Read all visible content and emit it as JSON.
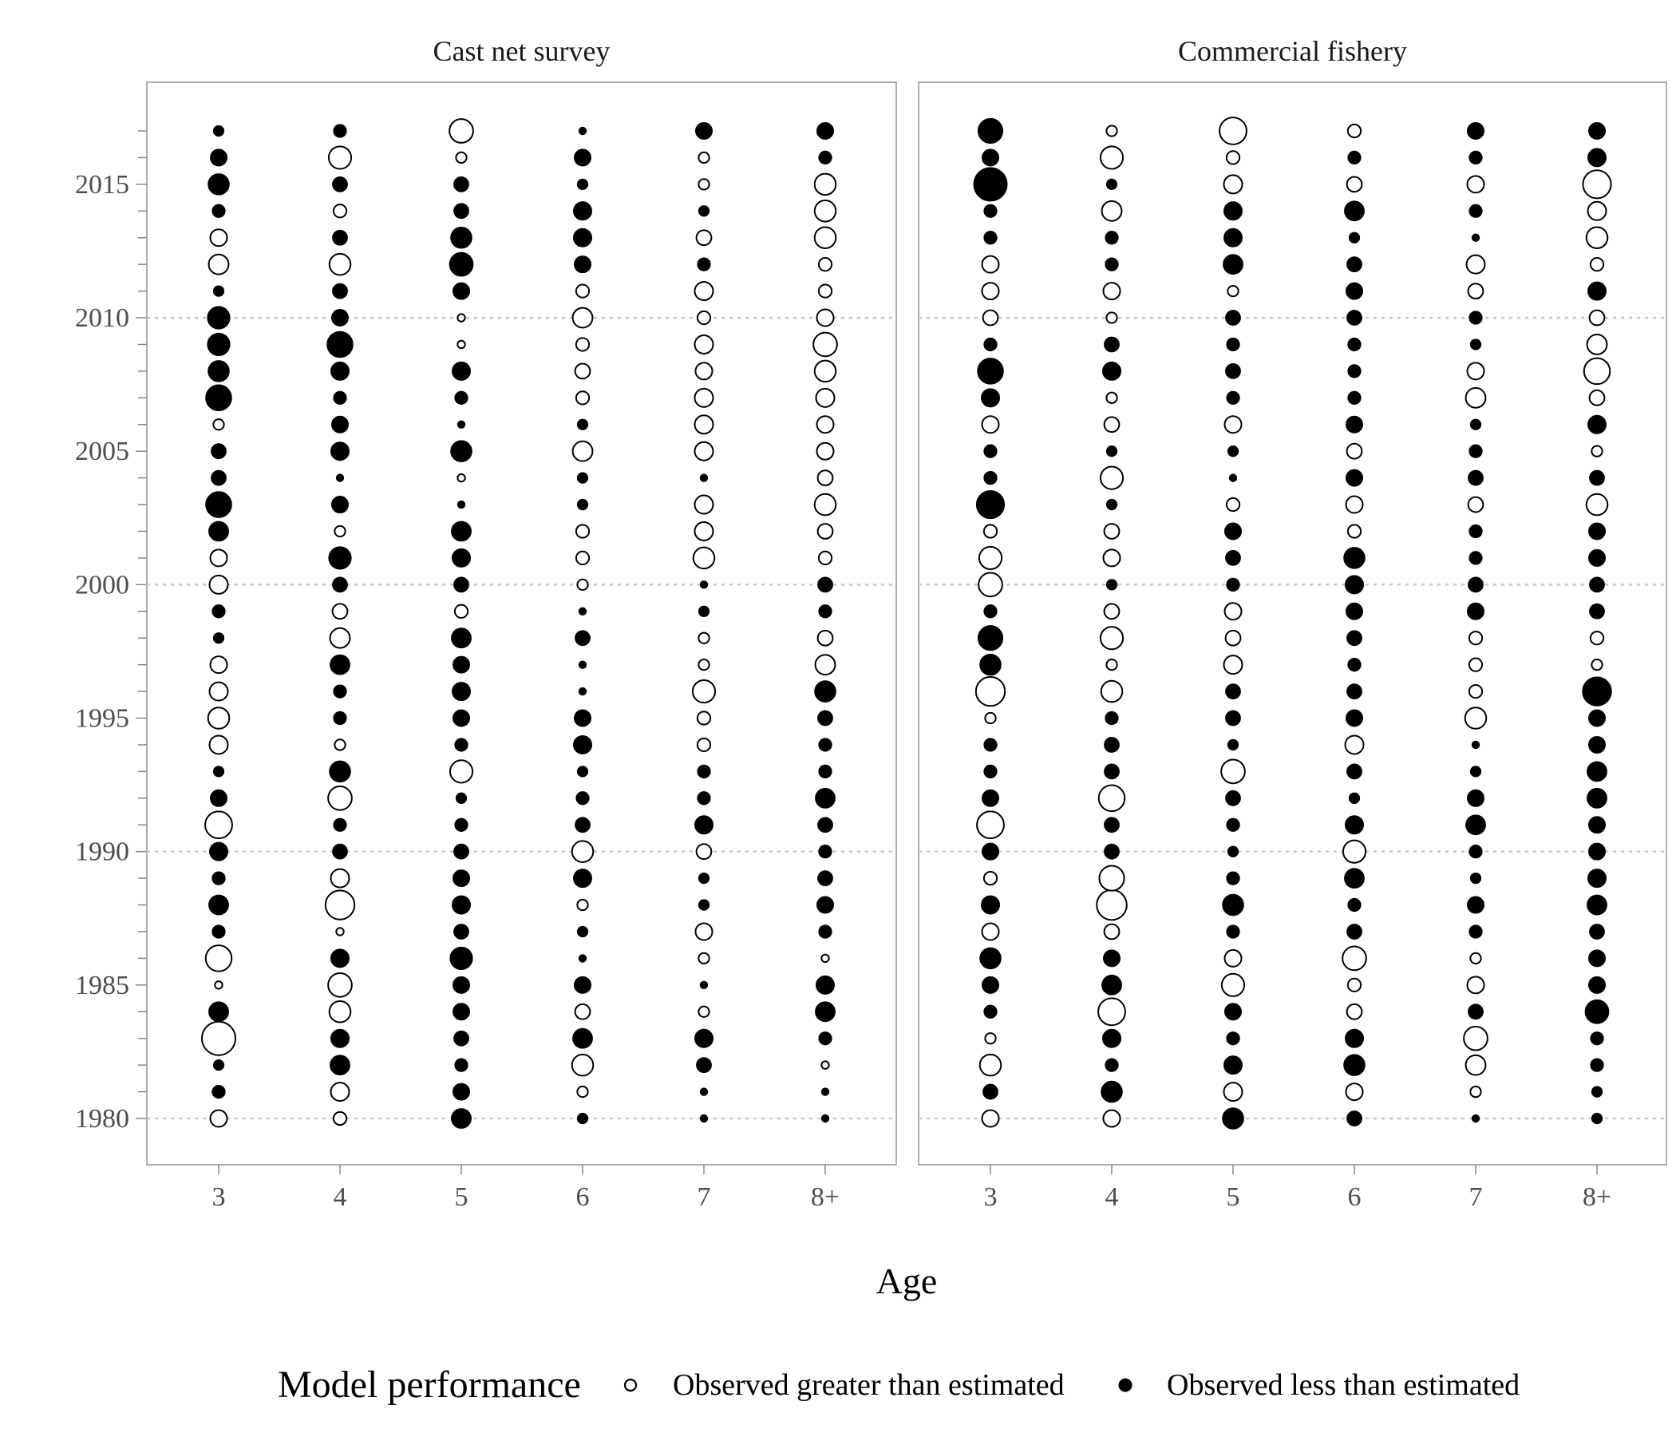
{
  "chart_data": {
    "type": "scatter",
    "subtype": "bubble-residuals",
    "xlabel": "Age",
    "ylabel": "",
    "x_categories": [
      "3",
      "4",
      "5",
      "6",
      "7",
      "8+"
    ],
    "y_ticks": [
      1980,
      1985,
      1990,
      1995,
      2000,
      2005,
      2010,
      2015
    ],
    "ylim": [
      1980,
      2017
    ],
    "grid": "dotted horizontal lines at 1980, 1990, 2000, 2010",
    "legend": {
      "title": "Model performance",
      "placement": "bottom",
      "entries": [
        {
          "label": "Observed greater than estimated",
          "symbol": "open circle"
        },
        {
          "label": "Observed less than estimated",
          "symbol": "filled circle"
        }
      ]
    },
    "encoding": "value = signed residual; positive = open circle (observed greater than estimated), negative = filled circle (observed less than estimated); circle area ~ |value|",
    "years": [
      1980,
      1981,
      1982,
      1983,
      1984,
      1985,
      1986,
      1987,
      1988,
      1989,
      1990,
      1991,
      1992,
      1993,
      1994,
      1995,
      1996,
      1997,
      1998,
      1999,
      2000,
      2001,
      2002,
      2003,
      2004,
      2005,
      2006,
      2007,
      2008,
      2009,
      2010,
      2011,
      2012,
      2013,
      2014,
      2015,
      2016,
      2017
    ],
    "panels": [
      {
        "title": "Cast net survey",
        "series": {
          "3": [
            0.5,
            -0.3,
            -0.2,
            2.0,
            -0.7,
            0.1,
            1.2,
            -0.3,
            -0.7,
            -0.3,
            -0.6,
            1.3,
            -0.5,
            -0.2,
            0.6,
            0.8,
            0.6,
            0.5,
            -0.2,
            -0.3,
            0.6,
            0.5,
            -0.7,
            -1.2,
            -0.4,
            -0.4,
            0.2,
            -1.2,
            -0.8,
            -0.9,
            -0.9,
            -0.2,
            0.7,
            0.5,
            -0.3,
            -0.8,
            -0.5,
            -0.2
          ],
          "4": [
            0.3,
            0.6,
            -0.7,
            -0.6,
            0.8,
            1.0,
            -0.6,
            0.1,
            1.5,
            0.6,
            -0.4,
            -0.3,
            1.0,
            -0.8,
            0.2,
            -0.3,
            -0.3,
            -0.7,
            0.7,
            0.4,
            -0.4,
            -0.9,
            0.2,
            -0.5,
            -0.1,
            -0.6,
            -0.5,
            -0.3,
            -0.6,
            -1.2,
            -0.5,
            -0.4,
            0.8,
            -0.4,
            0.3,
            -0.4,
            0.9,
            -0.3
          ],
          "5": [
            -0.7,
            -0.5,
            -0.3,
            -0.4,
            -0.5,
            -0.5,
            -0.9,
            -0.4,
            -0.6,
            -0.5,
            -0.4,
            -0.3,
            -0.2,
            0.9,
            -0.3,
            -0.5,
            -0.6,
            -0.5,
            -0.7,
            0.3,
            -0.4,
            -0.6,
            -0.7,
            -0.1,
            0.1,
            -0.8,
            -0.1,
            -0.3,
            -0.6,
            0.1,
            0.1,
            -0.5,
            -1.0,
            -0.8,
            -0.4,
            -0.4,
            0.2,
            1.0
          ],
          "6": [
            -0.2,
            0.2,
            0.8,
            -0.7,
            0.4,
            -0.5,
            -0.1,
            -0.2,
            0.2,
            -0.6,
            0.8,
            -0.4,
            -0.3,
            -0.2,
            -0.6,
            -0.5,
            -0.1,
            -0.1,
            -0.4,
            -0.1,
            0.2,
            0.3,
            0.3,
            -0.2,
            -0.2,
            0.7,
            -0.2,
            0.3,
            0.4,
            0.3,
            0.7,
            0.3,
            -0.5,
            -0.6,
            -0.6,
            -0.2,
            -0.5,
            -0.1
          ],
          "7": [
            -0.1,
            -0.1,
            -0.4,
            -0.6,
            0.2,
            -0.1,
            0.2,
            0.5,
            -0.2,
            -0.2,
            0.4,
            -0.6,
            -0.3,
            -0.3,
            0.3,
            0.3,
            0.9,
            0.2,
            0.2,
            -0.2,
            -0.1,
            0.8,
            0.6,
            0.6,
            -0.1,
            0.6,
            0.6,
            0.6,
            0.5,
            0.6,
            0.3,
            0.6,
            -0.3,
            0.4,
            -0.2,
            0.2,
            0.2,
            -0.5
          ],
          "8+": [
            -0.1,
            -0.1,
            0.1,
            -0.3,
            -0.7,
            -0.6,
            0.1,
            -0.3,
            -0.5,
            -0.4,
            -0.3,
            -0.4,
            -0.7,
            -0.3,
            -0.3,
            -0.4,
            -0.8,
            0.7,
            0.4,
            -0.3,
            -0.4,
            0.3,
            0.4,
            0.8,
            0.4,
            0.5,
            0.5,
            0.6,
            0.8,
            1.0,
            0.5,
            0.3,
            0.3,
            0.8,
            0.8,
            0.8,
            -0.3,
            -0.5
          ]
        }
      },
      {
        "title": "Commercial fishery",
        "series": {
          "3": [
            0.5,
            -0.4,
            0.8,
            0.2,
            -0.3,
            -0.5,
            -0.8,
            0.5,
            -0.6,
            0.3,
            -0.5,
            1.3,
            -0.5,
            -0.3,
            -0.3,
            0.2,
            1.5,
            -0.8,
            -1.1,
            -0.3,
            1.0,
            0.9,
            0.3,
            -1.4,
            -0.3,
            -0.3,
            0.5,
            -0.6,
            -1.2,
            -0.3,
            0.4,
            0.5,
            0.5,
            -0.3,
            -0.3,
            -2.0,
            -0.5,
            -1.1
          ],
          "4": [
            0.5,
            -0.8,
            -0.3,
            -0.6,
            1.3,
            -0.7,
            -0.5,
            0.4,
            1.6,
            1.1,
            -0.4,
            -0.4,
            1.2,
            -0.4,
            -0.4,
            -0.3,
            0.8,
            0.2,
            0.9,
            0.4,
            -0.2,
            0.5,
            0.4,
            -0.2,
            0.9,
            -0.2,
            0.4,
            0.2,
            -0.6,
            -0.4,
            0.2,
            0.5,
            -0.3,
            -0.3,
            0.7,
            -0.2,
            0.9,
            0.2
          ],
          "5": [
            -0.8,
            0.6,
            -0.6,
            -0.3,
            -0.5,
            0.9,
            0.5,
            -0.3,
            -0.8,
            -0.3,
            -0.2,
            -0.3,
            -0.4,
            1.0,
            -0.2,
            -0.4,
            -0.4,
            0.6,
            0.4,
            0.5,
            -0.3,
            -0.4,
            -0.5,
            0.3,
            -0.1,
            -0.2,
            0.5,
            -0.3,
            -0.4,
            -0.3,
            -0.4,
            0.2,
            -0.7,
            -0.6,
            -0.6,
            0.6,
            0.3,
            1.3
          ],
          "6": [
            -0.4,
            0.5,
            -0.8,
            -0.6,
            0.4,
            0.3,
            1.0,
            -0.4,
            -0.3,
            -0.7,
            0.9,
            -0.6,
            -0.2,
            -0.4,
            0.6,
            -0.5,
            -0.4,
            -0.3,
            -0.4,
            -0.5,
            -0.6,
            -0.8,
            0.3,
            0.5,
            -0.5,
            0.4,
            -0.5,
            -0.3,
            -0.3,
            -0.3,
            -0.4,
            -0.5,
            -0.4,
            -0.2,
            -0.7,
            0.4,
            -0.3,
            0.3
          ],
          "7": [
            -0.1,
            0.2,
            0.7,
            1.0,
            -0.4,
            0.5,
            0.2,
            -0.3,
            -0.5,
            -0.2,
            -0.3,
            -0.7,
            -0.5,
            -0.2,
            -0.1,
            0.8,
            0.3,
            0.3,
            0.3,
            -0.5,
            -0.4,
            -0.3,
            -0.3,
            0.4,
            -0.4,
            -0.3,
            -0.2,
            0.7,
            0.5,
            -0.2,
            -0.3,
            0.4,
            0.6,
            -0.1,
            -0.3,
            0.5,
            -0.3,
            -0.5
          ],
          "8+": [
            -0.2,
            -0.2,
            -0.3,
            -0.3,
            -1.0,
            -0.5,
            -0.5,
            -0.4,
            -0.7,
            -0.6,
            -0.5,
            -0.5,
            -0.7,
            -0.7,
            -0.5,
            -0.5,
            -1.5,
            0.2,
            0.3,
            -0.4,
            -0.4,
            -0.5,
            -0.5,
            0.8,
            -0.4,
            0.2,
            -0.6,
            0.4,
            1.2,
            0.7,
            0.4,
            -0.6,
            0.3,
            0.8,
            0.6,
            1.4,
            -0.6,
            -0.5
          ]
        }
      }
    ]
  }
}
